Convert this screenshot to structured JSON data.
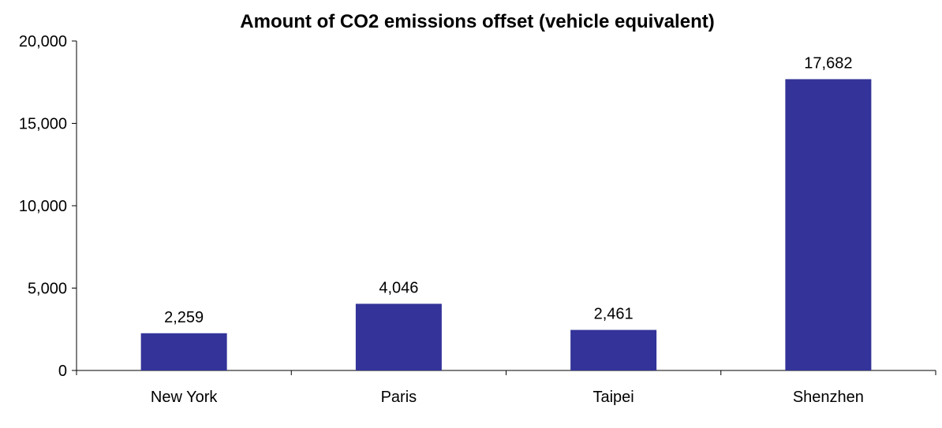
{
  "chart_data": {
    "type": "bar",
    "title": "Amount of CO2 emissions offset (vehicle equivalent)",
    "categories": [
      "New York",
      "Paris",
      "Taipei",
      "Shenzhen"
    ],
    "values": [
      2259,
      4046,
      2461,
      17682
    ],
    "data_labels": [
      "2,259",
      "4,046",
      "2,461",
      "17,682"
    ],
    "ylim": [
      0,
      20000
    ],
    "yticks": [
      0,
      5000,
      10000,
      15000,
      20000
    ],
    "ytick_labels": [
      "0",
      "5,000",
      "10,000",
      "15,000",
      "20,000"
    ],
    "xlabel": "",
    "ylabel": "",
    "grid": false,
    "legend": "none",
    "bar_color": "#333399"
  }
}
